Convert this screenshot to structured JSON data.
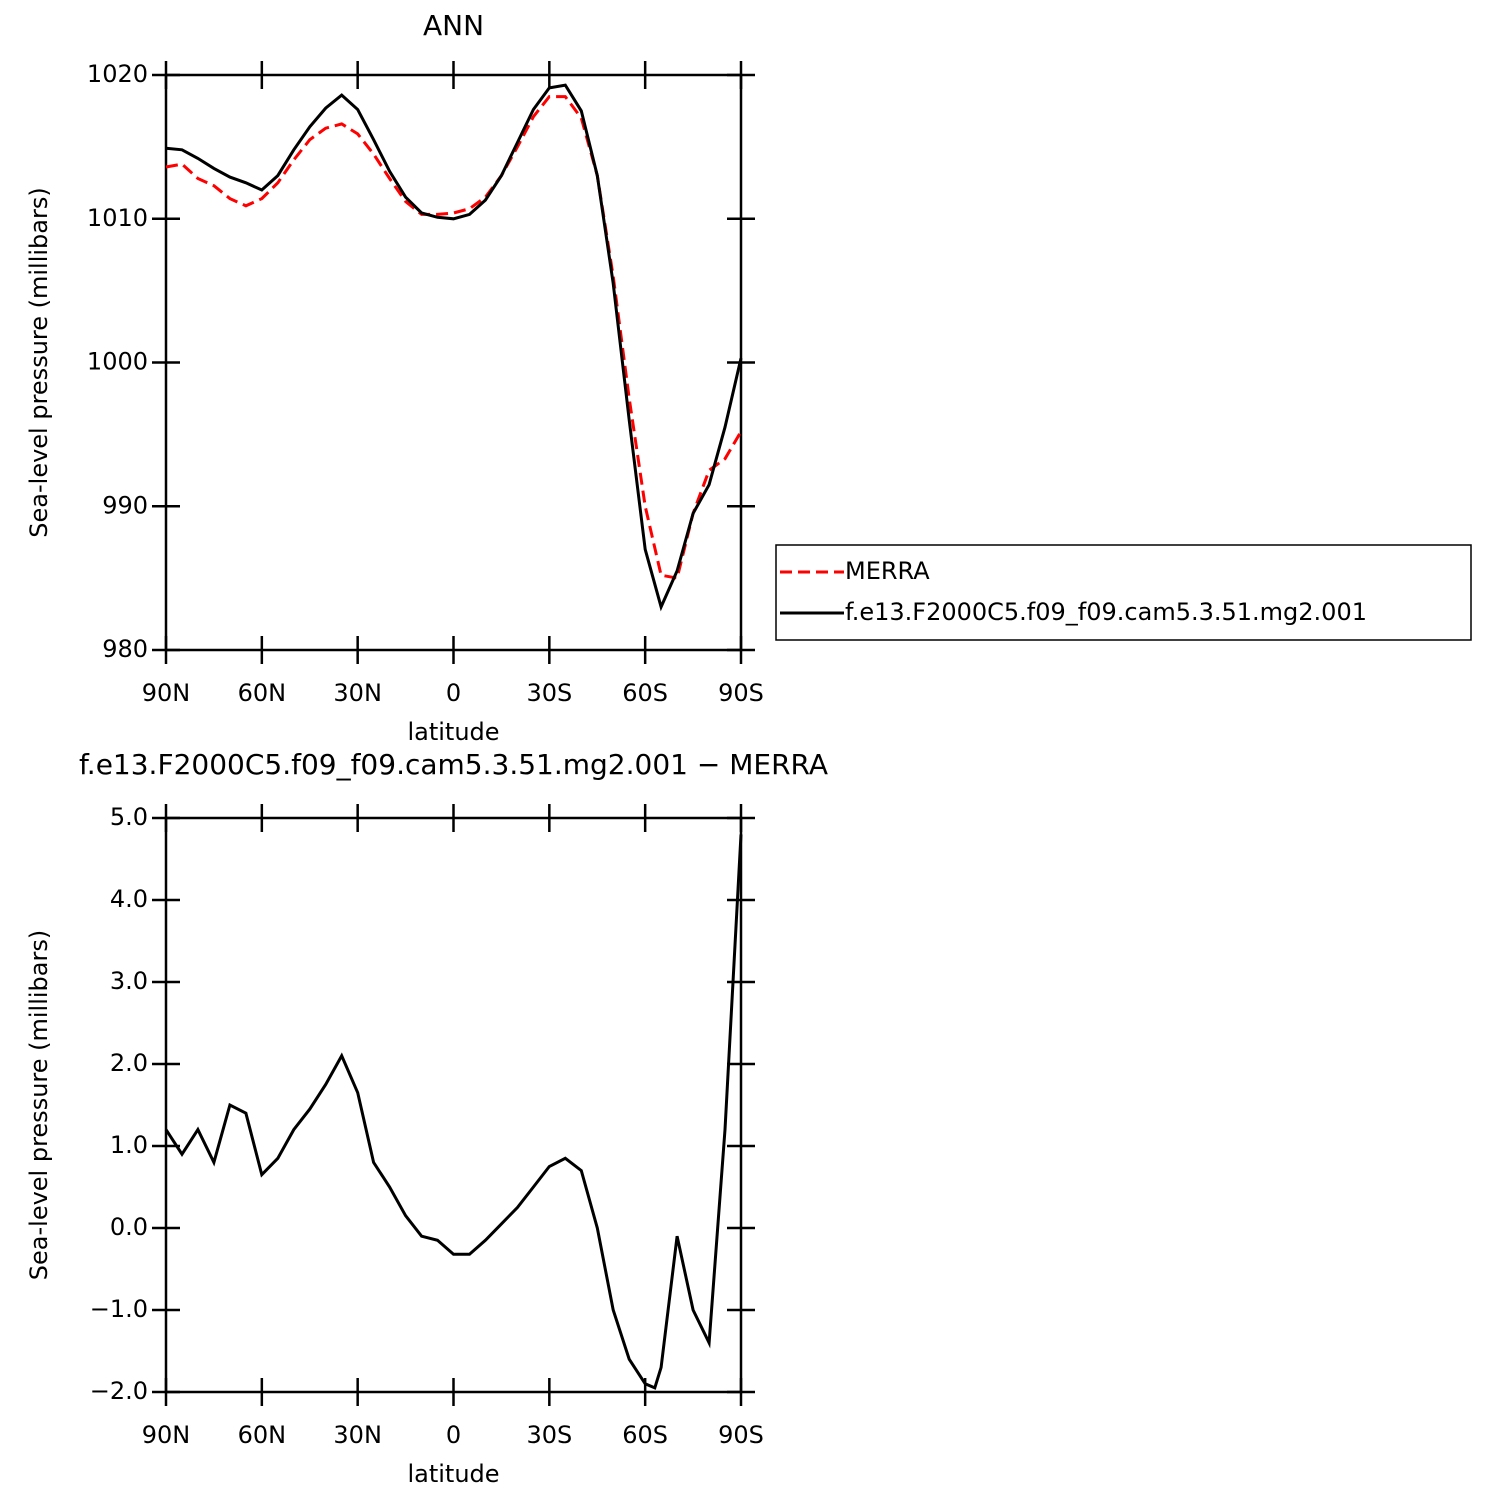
{
  "chart_data": [
    {
      "type": "line",
      "title": "ANN",
      "xlabel": "latitude",
      "ylabel": "Sea-level pressure (millibars)",
      "x": [
        90,
        85,
        80,
        75,
        70,
        65,
        60,
        55,
        50,
        45,
        40,
        35,
        30,
        25,
        20,
        15,
        10,
        5,
        0,
        -5,
        -10,
        -15,
        -20,
        -25,
        -30,
        -35,
        -40,
        -45,
        -50,
        -55,
        -60,
        -65,
        -70,
        -75,
        -80,
        -85,
        -90
      ],
      "series": [
        {
          "name": "MERRA",
          "color": "#ff0000",
          "linestyle": "dashed",
          "values": [
            1013.6,
            1013.8,
            1012.8,
            1012.3,
            1011.4,
            1010.9,
            1011.4,
            1012.5,
            1014.1,
            1015.5,
            1016.3,
            1016.6,
            1015.9,
            1014.5,
            1012.8,
            1011.2,
            1010.3,
            1010.3,
            1010.4,
            1010.7,
            1011.5,
            1013.0,
            1015.0,
            1017.1,
            1018.5,
            1018.5,
            1017.0,
            1013.0,
            1006.0,
            997.5,
            990.0,
            985.2,
            985.0,
            989.5,
            992.5,
            993.3,
            995.2
          ]
        },
        {
          "name": "f.e13.F2000C5.f09_f09.cam5.3.51.mg2.001",
          "color": "#000000",
          "linestyle": "solid",
          "values": [
            1014.9,
            1014.8,
            1014.2,
            1013.5,
            1012.9,
            1012.5,
            1012.0,
            1013.0,
            1014.8,
            1016.4,
            1017.7,
            1018.6,
            1017.6,
            1015.5,
            1013.3,
            1011.5,
            1010.4,
            1010.1,
            1010.0,
            1010.3,
            1011.3,
            1013.0,
            1015.3,
            1017.6,
            1019.1,
            1019.3,
            1017.5,
            1013.0,
            1005.5,
            996.0,
            987.0,
            983.0,
            985.5,
            989.5,
            991.5,
            995.5,
            1000.3
          ]
        }
      ],
      "xlim": [
        90,
        -90
      ],
      "xticks": [
        {
          "value": 90,
          "label": "90N"
        },
        {
          "value": 60,
          "label": "60N"
        },
        {
          "value": 30,
          "label": "30N"
        },
        0,
        {
          "value": -30,
          "label": "30S"
        },
        {
          "value": -60,
          "label": "60S"
        },
        {
          "value": -90,
          "label": "90S"
        }
      ],
      "ylim": [
        980,
        1020
      ],
      "yticks": [
        980,
        990,
        1000,
        1010,
        1020
      ],
      "legend": "outside-right"
    },
    {
      "type": "line",
      "title": "f.e13.F2000C5.f09_f09.cam5.3.51.mg2.001  −  MERRA",
      "xlabel": "latitude",
      "ylabel": "Sea-level pressure (millibars)",
      "x": [
        90,
        85,
        80,
        75,
        70,
        65,
        60,
        55,
        50,
        45,
        40,
        35,
        30,
        25,
        20,
        15,
        10,
        5,
        0,
        -5,
        -10,
        -15,
        -20,
        -25,
        -30,
        -35,
        -40,
        -45,
        -50,
        -55,
        -60,
        -63,
        -65,
        -70,
        -75,
        -80,
        -85,
        -90
      ],
      "series": [
        {
          "color": "#000000",
          "linestyle": "solid",
          "values": [
            1.2,
            0.9,
            1.2,
            0.8,
            1.5,
            1.4,
            0.65,
            0.85,
            1.2,
            1.45,
            1.75,
            2.1,
            1.65,
            0.8,
            0.5,
            0.15,
            -0.1,
            -0.15,
            -0.32,
            -0.32,
            -0.15,
            0.05,
            0.25,
            0.5,
            0.75,
            0.85,
            0.7,
            0.0,
            -1.0,
            -1.6,
            -1.9,
            -1.95,
            -1.7,
            -0.1,
            -1.0,
            -1.4,
            1.2,
            4.8
          ]
        }
      ],
      "xlim": [
        90,
        -90
      ],
      "xticks": [
        {
          "value": 90,
          "label": "90N"
        },
        {
          "value": 60,
          "label": "60N"
        },
        {
          "value": 30,
          "label": "30N"
        },
        0,
        {
          "value": -30,
          "label": "30S"
        },
        {
          "value": -60,
          "label": "60S"
        },
        {
          "value": -90,
          "label": "90S"
        }
      ],
      "ylim": [
        -2,
        5
      ],
      "yticks": [
        {
          "value": -2,
          "label": "−2.0"
        },
        {
          "value": -1,
          "label": "−1.0"
        },
        {
          "value": 0,
          "label": "0.0"
        },
        {
          "value": 1,
          "label": "1.0"
        },
        {
          "value": 2,
          "label": "2.0"
        },
        {
          "value": 3,
          "label": "3.0"
        },
        {
          "value": 4,
          "label": "4.0"
        },
        {
          "value": 5,
          "label": "5.0"
        }
      ]
    }
  ]
}
